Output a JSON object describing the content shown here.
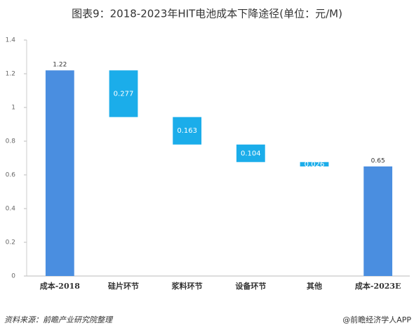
{
  "chart_data": {
    "type": "waterfall",
    "title": "图表9：2018-2023年HIT电池成本下降途径(单位：元/M)",
    "categories": [
      "成本-2018",
      "硅片环节",
      "浆料环节",
      "设备环节",
      "其他",
      "成本-2023E"
    ],
    "values": [
      1.22,
      0.277,
      0.163,
      0.104,
      0.026,
      0.65
    ],
    "totals": [
      true,
      false,
      false,
      false,
      false,
      true
    ],
    "total_color": "#4a8ee0",
    "change_color": "#1badea",
    "ylim": [
      0,
      1.4
    ],
    "yticks": [
      0,
      0.2,
      0.4,
      0.6,
      0.8,
      1,
      1.2,
      1.4
    ],
    "grid": false,
    "source": "资料来源：前瞻产业研究院整理",
    "credit": "@前瞻经济学人APP"
  }
}
